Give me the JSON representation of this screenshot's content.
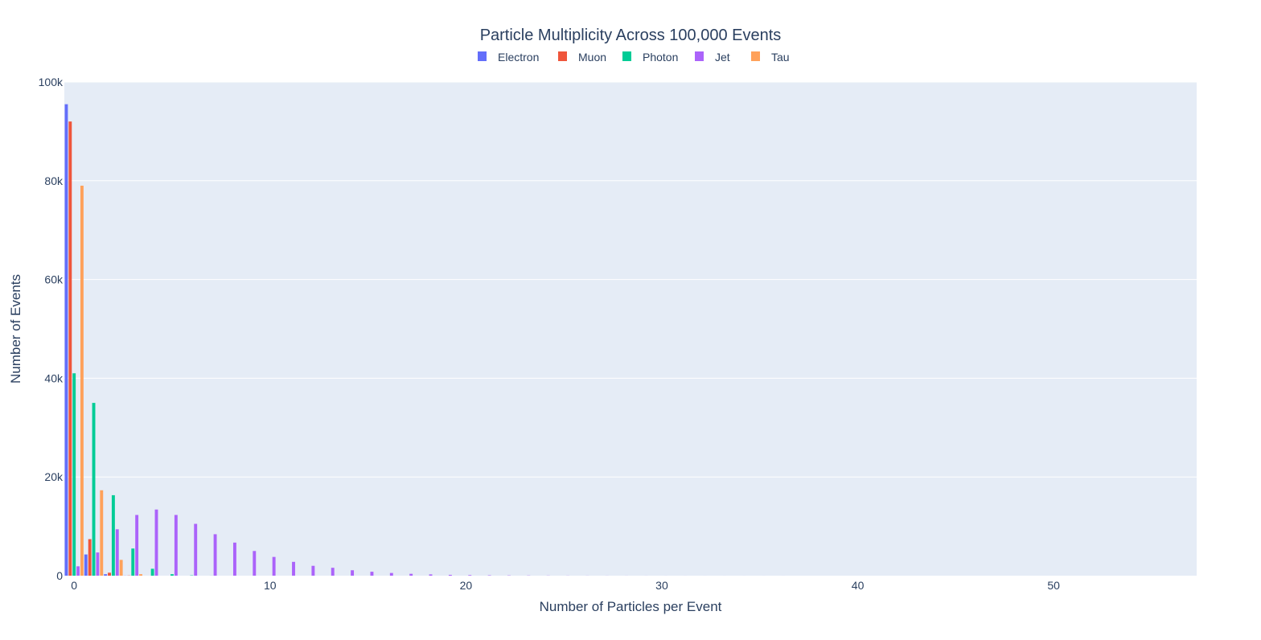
{
  "chart_data": {
    "type": "bar",
    "title": "Particle Multiplicity Across 100,000 Events",
    "xlabel": "Number of Particles per Event",
    "ylabel": "Number of Events",
    "xlim": [
      -0.5,
      57.3
    ],
    "ylim": [
      0,
      100000
    ],
    "x_ticks": [
      0,
      10,
      20,
      30,
      40,
      50
    ],
    "x_tick_labels": [
      "0",
      "10",
      "20",
      "30",
      "40",
      "50"
    ],
    "y_ticks": [
      0,
      20000,
      40000,
      60000,
      80000,
      100000
    ],
    "y_tick_labels": [
      "0",
      "20k",
      "40k",
      "60k",
      "80k",
      "100k"
    ],
    "grid": true,
    "barmode": "group",
    "legend_position": "top-center",
    "colors": {
      "plot_bg": "#e5ecf6",
      "grid": "#ffffff",
      "text": "#2a3f5f"
    },
    "series": [
      {
        "name": "Electron",
        "color": "#636efa",
        "x": [
          0,
          1,
          2,
          3
        ],
        "values": [
          95500,
          4300,
          300,
          20
        ]
      },
      {
        "name": "Muon",
        "color": "#ef553b",
        "x": [
          0,
          1,
          2,
          3
        ],
        "values": [
          92000,
          7400,
          600,
          40
        ]
      },
      {
        "name": "Photon",
        "color": "#00cc96",
        "x": [
          0,
          1,
          2,
          3,
          4,
          5,
          6,
          7
        ],
        "values": [
          41000,
          35000,
          16300,
          5500,
          1400,
          300,
          60,
          10
        ]
      },
      {
        "name": "Jet",
        "color": "#ab63fa",
        "x": [
          0,
          1,
          2,
          3,
          4,
          5,
          6,
          7,
          8,
          9,
          10,
          11,
          12,
          13,
          14,
          15,
          16,
          17,
          18,
          19,
          20,
          21,
          22,
          23,
          24,
          25,
          26,
          27,
          28,
          29,
          30,
          31,
          32,
          33,
          34,
          35,
          36,
          37,
          38,
          39,
          40,
          41
        ],
        "values": [
          1900,
          4700,
          9400,
          12300,
          13400,
          12300,
          10500,
          8400,
          6700,
          5000,
          3800,
          2800,
          2000,
          1600,
          1100,
          800,
          550,
          380,
          260,
          170,
          120,
          80,
          55,
          40,
          28,
          20,
          15,
          11,
          8,
          6,
          5,
          4,
          3,
          3,
          2,
          2,
          2,
          1,
          1,
          1,
          1,
          1
        ]
      },
      {
        "name": "Tau",
        "color": "#ffa15a",
        "x": [
          0,
          1,
          2,
          3
        ],
        "values": [
          79000,
          17300,
          3200,
          300
        ]
      }
    ]
  }
}
